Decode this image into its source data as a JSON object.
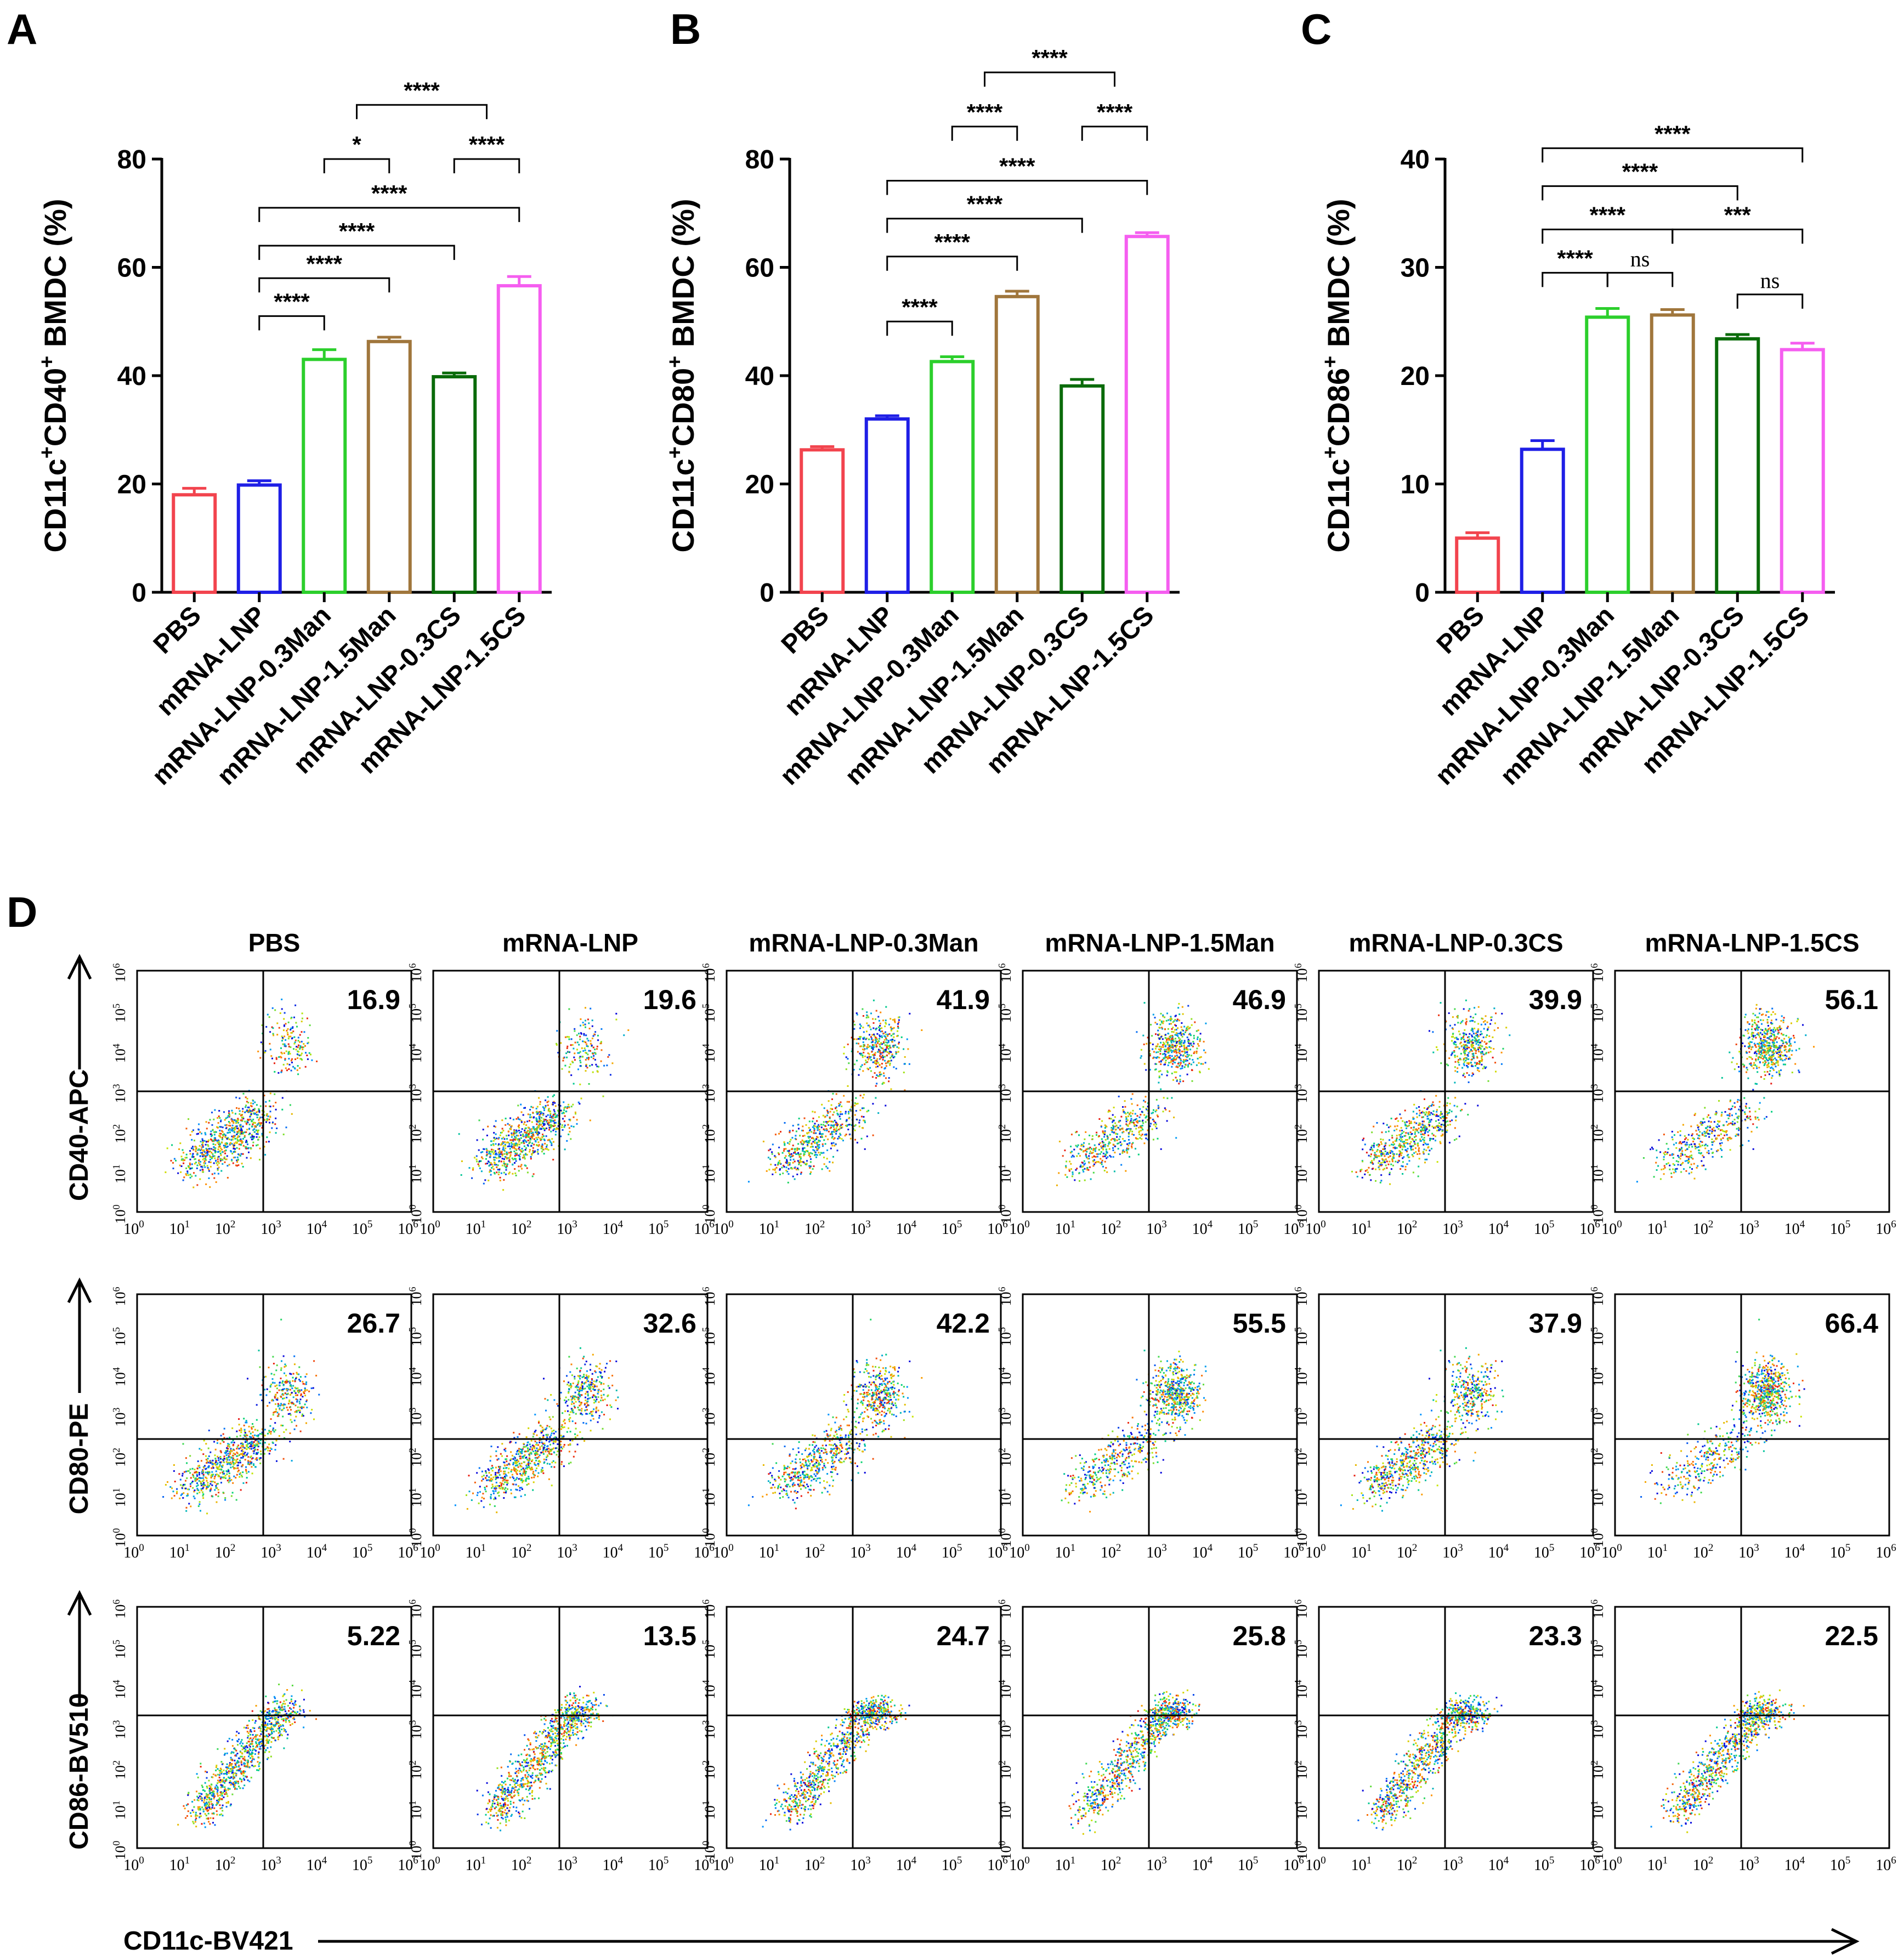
{
  "figure": {
    "panel_letters": [
      "A",
      "B",
      "C",
      "D"
    ]
  },
  "colors": {
    "groups": [
      "#f2444e",
      "#1f1fe6",
      "#2ccf2c",
      "#a0763c",
      "#0a6b0a",
      "#f55ef0"
    ],
    "axis": "#000000"
  },
  "chart_data": [
    {
      "type": "bar",
      "panel": "A",
      "categories": [
        "PBS",
        "mRNA-LNP",
        "mRNA-LNP-0.3Man",
        "mRNA-LNP-1.5Man",
        "mRNA-LNP-0.3CS",
        "mRNA-LNP-1.5CS"
      ],
      "values": [
        18.0,
        19.8,
        43.0,
        46.3,
        39.8,
        56.6
      ],
      "errors": [
        1.2,
        0.8,
        1.8,
        0.8,
        0.7,
        1.7
      ],
      "ylabel_parts": [
        "CD11c",
        "+",
        "CD40",
        "+",
        " BMDC (%)"
      ],
      "ylim": [
        0,
        80
      ],
      "yticks": [
        "0",
        "20",
        "40",
        "60",
        "80"
      ],
      "comparisons": [
        {
          "a": 1,
          "b": 2,
          "label": "****",
          "y": 51
        },
        {
          "a": 1,
          "b": 3,
          "label": "****",
          "y": 58
        },
        {
          "a": 1,
          "b": 4,
          "label": "****",
          "y": 64
        },
        {
          "a": 1,
          "b": 5,
          "label": "****",
          "y": 71
        },
        {
          "a": 2,
          "b": 3,
          "label": "*",
          "y": 80
        },
        {
          "a": 4,
          "b": 5,
          "label": "****",
          "y": 80
        },
        {
          "a": 2.5,
          "b": 4.5,
          "label": "****",
          "y": 90
        }
      ]
    },
    {
      "type": "bar",
      "panel": "B",
      "categories": [
        "PBS",
        "mRNA-LNP",
        "mRNA-LNP-0.3Man",
        "mRNA-LNP-1.5Man",
        "mRNA-LNP-0.3CS",
        "mRNA-LNP-1.5CS"
      ],
      "values": [
        26.3,
        32.0,
        42.6,
        54.6,
        38.1,
        65.7
      ],
      "errors": [
        0.6,
        0.6,
        0.9,
        1.0,
        1.2,
        0.7
      ],
      "ylabel_parts": [
        "CD11c",
        "+",
        "CD80",
        "+",
        " BMDC (%)"
      ],
      "ylim": [
        0,
        80
      ],
      "yticks": [
        "0",
        "20",
        "40",
        "60",
        "80"
      ],
      "comparisons": [
        {
          "a": 1,
          "b": 2,
          "label": "****",
          "y": 50
        },
        {
          "a": 1,
          "b": 3,
          "label": "****",
          "y": 62
        },
        {
          "a": 1,
          "b": 4,
          "label": "****",
          "y": 69
        },
        {
          "a": 1,
          "b": 5,
          "label": "****",
          "y": 76
        },
        {
          "a": 2,
          "b": 3,
          "label": "****",
          "y": 86
        },
        {
          "a": 4,
          "b": 5,
          "label": "****",
          "y": 86
        },
        {
          "a": 2.5,
          "b": 4.5,
          "label": "****",
          "y": 96
        }
      ]
    },
    {
      "type": "bar",
      "panel": "C",
      "categories": [
        "PBS",
        "mRNA-LNP",
        "mRNA-LNP-0.3Man",
        "mRNA-LNP-1.5Man",
        "mRNA-LNP-0.3CS",
        "mRNA-LNP-1.5CS"
      ],
      "values": [
        5.0,
        13.2,
        25.4,
        25.6,
        23.4,
        22.4
      ],
      "errors": [
        0.5,
        0.8,
        0.8,
        0.5,
        0.4,
        0.6
      ],
      "ylabel_parts": [
        "CD11c",
        "+",
        "CD86",
        "+",
        " BMDC (%)"
      ],
      "ylim": [
        0,
        40
      ],
      "yticks": [
        "0",
        "10",
        "20",
        "30",
        "40"
      ],
      "comparisons": [
        {
          "a": 1,
          "b": 2,
          "label": "****",
          "y": 29.5
        },
        {
          "a": 2,
          "b": 3,
          "label": "ns",
          "y": 29.5
        },
        {
          "a": 4,
          "b": 5,
          "label": "ns",
          "y": 27.5
        },
        {
          "a": 1,
          "b": 3,
          "label": "****",
          "y": 33.5
        },
        {
          "a": 3,
          "b": 5,
          "label": "***",
          "y": 33.5
        },
        {
          "a": 1,
          "b": 4,
          "label": "****",
          "y": 37.5
        },
        {
          "a": 1,
          "b": 5,
          "label": "****",
          "y": 41.0
        }
      ]
    },
    {
      "type": "scatter",
      "panel": "D",
      "subtype": "flow-cytometry-density-grid",
      "columns": [
        "PBS",
        "mRNA-LNP",
        "mRNA-LNP-0.3Man",
        "mRNA-LNP-1.5Man",
        "mRNA-LNP-0.3CS",
        "mRNA-LNP-1.5CS"
      ],
      "rows": [
        {
          "ylabel": "CD40-APC",
          "values": [
            "16.9",
            "19.6",
            "41.9",
            "46.9",
            "39.9",
            "56.1"
          ]
        },
        {
          "ylabel": "CD80-PE",
          "values": [
            "26.7",
            "32.6",
            "42.2",
            "55.5",
            "37.9",
            "66.4"
          ]
        },
        {
          "ylabel": "CD86-BV510",
          "values": [
            "5.22",
            "13.5",
            "24.7",
            "25.8",
            "23.3",
            "22.5"
          ]
        }
      ],
      "xlabel": "CD11c-BV421",
      "axis_exponents": [
        "0",
        "1",
        "2",
        "3",
        "4",
        "5",
        "6"
      ],
      "axis_base": "10"
    }
  ]
}
